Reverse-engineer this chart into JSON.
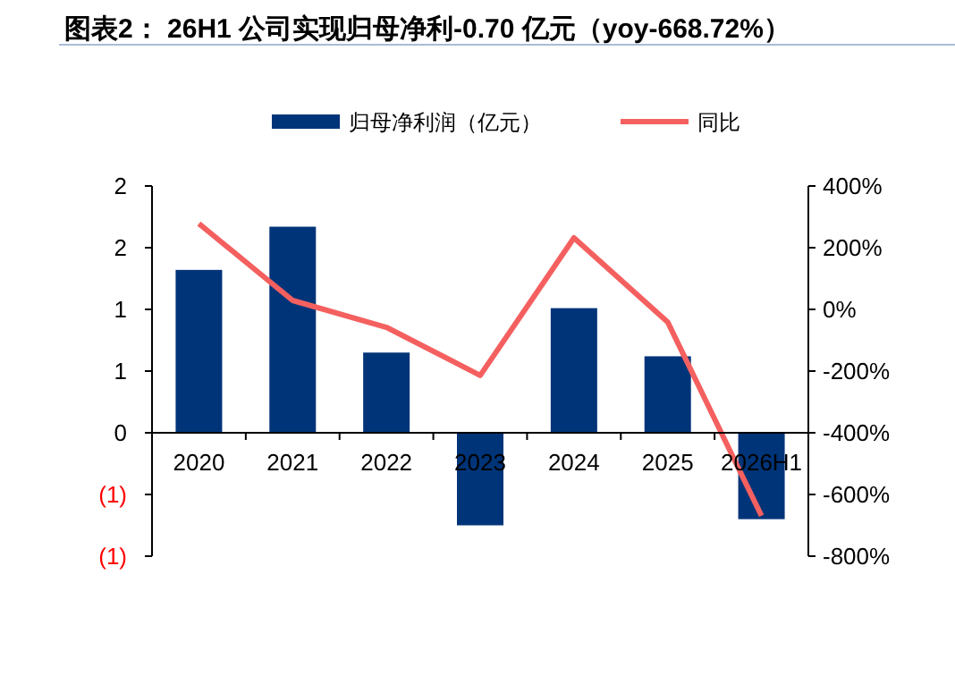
{
  "chart_data": {
    "type": "bar",
    "title": "图表2： 26H1 公司实现归母净利-0.70 亿元（yoy-668.72%）",
    "categories": [
      "2020",
      "2021",
      "2022",
      "2023",
      "2024",
      "2025",
      "2026H1"
    ],
    "series": [
      {
        "name": "归母净利润（亿元）",
        "color": "#003478",
        "values": [
          1.32,
          1.67,
          0.65,
          -0.75,
          1.01,
          0.62,
          -0.7
        ]
      },
      {
        "name": "同比",
        "type": "line",
        "axis": "y2",
        "color": "#f4605f",
        "values": [
          278,
          29,
          -58,
          -214,
          232,
          -41,
          -669
        ]
      }
    ],
    "ylim": [
      -1,
      2
    ],
    "yticks": [
      {
        "value": 2,
        "label": "2"
      },
      {
        "value": 1.5,
        "label": "2"
      },
      {
        "value": 1,
        "label": "1"
      },
      {
        "value": 0.5,
        "label": "1"
      },
      0,
      {
        "value": -0.5,
        "label": "(1)"
      },
      {
        "value": -1,
        "label": "(1)"
      }
    ],
    "y2lim": [
      -800,
      400
    ],
    "y2ticks": [
      {
        "value": 400,
        "label": "400%"
      },
      {
        "value": 200,
        "label": "200%"
      },
      {
        "value": 0,
        "label": "0%"
      },
      {
        "value": -200,
        "label": "-200%"
      },
      {
        "value": -400,
        "label": "-400%"
      },
      {
        "value": -600,
        "label": "-600%"
      },
      {
        "value": -800,
        "label": "-800%"
      }
    ],
    "legend": "top",
    "grid": false
  }
}
